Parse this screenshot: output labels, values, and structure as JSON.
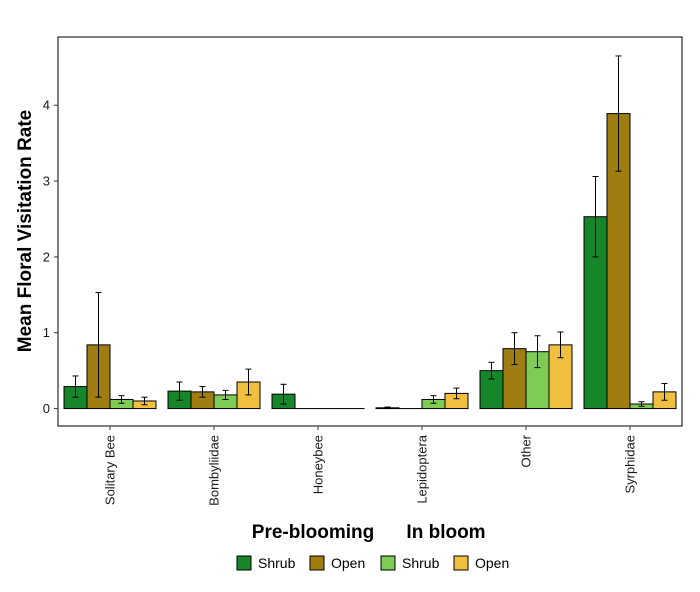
{
  "chart_data": {
    "type": "bar",
    "ylabel": "Mean Floral Visitation Rate",
    "xlabel_groups": [
      "Pre-blooming",
      "In bloom"
    ],
    "categories": [
      "Solitary Bee",
      "Bombyliidae",
      "Honeybee",
      "Lepidoptera",
      "Other",
      "Syrphidae"
    ],
    "ylim": [
      -0.23,
      4.9
    ],
    "yticks": [
      0,
      1,
      2,
      3,
      4
    ],
    "grid": false,
    "legend_position": "bottom",
    "series": [
      {
        "name": "Shrub",
        "group": "Pre-blooming",
        "color": "#17862a",
        "values": [
          0.29,
          0.23,
          0.19,
          0.01,
          0.5,
          2.53
        ],
        "errors": [
          0.14,
          0.12,
          0.13,
          0.01,
          0.11,
          0.53
        ]
      },
      {
        "name": "Open",
        "group": "Pre-blooming",
        "color": "#a07d10",
        "values": [
          0.84,
          0.22,
          0.0,
          0.0,
          0.79,
          3.89
        ],
        "errors": [
          0.69,
          0.07,
          0.0,
          0.0,
          0.21,
          0.76
        ]
      },
      {
        "name": "Shrub",
        "group": "In bloom",
        "color": "#7ecc55",
        "values": [
          0.12,
          0.18,
          0.0,
          0.12,
          0.75,
          0.06
        ],
        "errors": [
          0.05,
          0.06,
          0.0,
          0.05,
          0.21,
          0.03
        ]
      },
      {
        "name": "Open",
        "group": "In bloom",
        "color": "#f2c040",
        "values": [
          0.1,
          0.35,
          0.0,
          0.2,
          0.84,
          0.22
        ],
        "errors": [
          0.05,
          0.17,
          0.0,
          0.07,
          0.17,
          0.11
        ]
      }
    ]
  }
}
